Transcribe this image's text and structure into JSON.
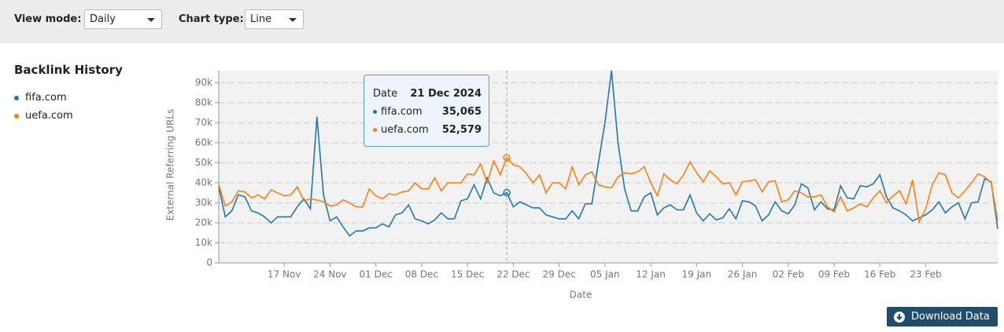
{
  "controls": {
    "view_mode_label": "View mode:",
    "view_mode": "Daily",
    "chart_type_label": "Chart type:",
    "chart_type": "Line"
  },
  "panel_title": "Backlink History",
  "download_button": "Download Data",
  "chart_data": {
    "type": "line",
    "xlabel": "Date",
    "ylabel": "External Referring URLs",
    "categories": [
      null,
      null,
      null,
      null,
      null,
      null,
      null,
      null,
      null,
      null,
      "17 Nov",
      null,
      null,
      null,
      null,
      null,
      null,
      "24 Nov",
      null,
      null,
      null,
      null,
      null,
      null,
      "01 Dec",
      null,
      null,
      null,
      null,
      null,
      null,
      "08 Dec",
      null,
      null,
      null,
      null,
      null,
      null,
      "15 Dec",
      null,
      null,
      null,
      null,
      null,
      null,
      "22 Dec",
      null,
      null,
      null,
      null,
      null,
      null,
      "29 Dec",
      null,
      null,
      null,
      null,
      null,
      null,
      "05 Jan",
      null,
      null,
      null,
      null,
      null,
      null,
      "12 Jan",
      null,
      null,
      null,
      null,
      null,
      null,
      "19 Jan",
      null,
      null,
      null,
      null,
      null,
      null,
      "26 Jan",
      null,
      null,
      null,
      null,
      null,
      null,
      "02 Feb",
      null,
      null,
      null,
      null,
      null,
      null,
      "09 Feb",
      null,
      null,
      null,
      null,
      null,
      null,
      "16 Feb",
      null,
      null,
      null,
      null,
      null,
      null,
      "23 Feb",
      null,
      null,
      null,
      null,
      null,
      null,
      null,
      null,
      null,
      null,
      null
    ],
    "ylim": [
      0,
      96000
    ],
    "yticks": [
      0,
      {
        "value": 10000,
        "label": "10k"
      },
      {
        "value": 20000,
        "label": "20k"
      },
      {
        "value": 30000,
        "label": "30k"
      },
      {
        "value": 40000,
        "label": "40k"
      },
      {
        "value": 50000,
        "label": "50k"
      },
      {
        "value": 60000,
        "label": "60k"
      },
      {
        "value": 70000,
        "label": "70k"
      },
      {
        "value": 80000,
        "label": "80k"
      },
      {
        "value": 90000,
        "label": "90k"
      }
    ],
    "grid": true,
    "tooltip": {
      "date_label": "Date",
      "date": "21 Dec 2024"
    },
    "series": [
      {
        "name": "fifa.com",
        "color": "#1f77b4",
        "values": [
          38000,
          23000,
          26000,
          34000,
          33000,
          26000,
          25000,
          23000,
          20000,
          23000,
          23000,
          23000,
          28000,
          32000,
          27000,
          73000,
          34000,
          21000,
          23000,
          18000,
          13500,
          16000,
          16000,
          17500,
          17500,
          19500,
          18000,
          24000,
          25000,
          29000,
          22000,
          21000,
          19500,
          21500,
          25000,
          22000,
          22000,
          31000,
          32000,
          39000,
          32000,
          42500,
          35000,
          33500,
          35065,
          28000,
          30500,
          29000,
          27500,
          27500,
          24000,
          23000,
          22000,
          22000,
          26000,
          22000,
          29500,
          29500,
          50000,
          70000,
          96000,
          60000,
          37000,
          26000,
          26000,
          33000,
          35000,
          24000,
          27500,
          29000,
          26500,
          26500,
          34000,
          25000,
          21000,
          24500,
          21500,
          22500,
          27000,
          22000,
          31000,
          30500,
          28500,
          21000,
          24000,
          30500,
          26000,
          24500,
          29000,
          39500,
          37500,
          26500,
          30500,
          27000,
          26500,
          38500,
          32500,
          32000,
          38500,
          38000,
          39500,
          44000,
          33000,
          27500,
          26000,
          24000,
          21000,
          22500,
          24000,
          26500,
          30500,
          25000,
          28000,
          30000,
          22000,
          30000,
          30500,
          42000,
          40500,
          17000
        ],
        "value_labels": [
          null,
          null,
          null,
          null,
          null,
          null,
          null,
          null,
          null,
          null,
          null,
          null,
          null,
          null,
          null,
          null,
          null,
          null,
          null,
          null,
          null,
          null,
          null,
          null,
          null,
          null,
          null,
          null,
          null,
          null,
          null,
          null,
          null,
          null,
          null,
          null,
          null,
          null,
          null,
          null,
          null,
          null,
          null,
          null,
          "35,065",
          null,
          null,
          null,
          null,
          null,
          null,
          null,
          null,
          null,
          null,
          null,
          null,
          null,
          null,
          null,
          null,
          null,
          null,
          null,
          null,
          null,
          null,
          null,
          null,
          null,
          null,
          null,
          null,
          null,
          null,
          null,
          null,
          null,
          null,
          null,
          null,
          null,
          null,
          null,
          null,
          null,
          null,
          null,
          null,
          null,
          null,
          null,
          null,
          null,
          null,
          null,
          null,
          null,
          null,
          null,
          null,
          null,
          null,
          null,
          null,
          null,
          null,
          null,
          null,
          null,
          null,
          null,
          null,
          null,
          null,
          null,
          null,
          null,
          null,
          null
        ]
      },
      {
        "name": "uefa.com",
        "color": "#ff7f0e",
        "values": [
          39000,
          28500,
          30500,
          36000,
          35500,
          32500,
          34000,
          32000,
          36500,
          35000,
          33500,
          34000,
          38000,
          31000,
          32000,
          31500,
          30500,
          28500,
          29000,
          31500,
          30000,
          28000,
          28000,
          37000,
          33500,
          32000,
          34500,
          34000,
          35500,
          36000,
          40000,
          37000,
          37000,
          42500,
          36000,
          40000,
          40000,
          40000,
          44500,
          44000,
          49500,
          40000,
          51000,
          44000,
          52579,
          49000,
          48000,
          44500,
          40000,
          44000,
          35000,
          40000,
          40000,
          37000,
          48000,
          39000,
          44000,
          45500,
          39000,
          38000,
          37500,
          43000,
          45000,
          44500,
          45500,
          48000,
          40000,
          33500,
          44500,
          41500,
          39500,
          44000,
          50500,
          45000,
          40500,
          46000,
          43000,
          39500,
          40000,
          34000,
          40500,
          41000,
          41500,
          35500,
          40500,
          41000,
          30500,
          31500,
          36000,
          35000,
          33000,
          33000,
          34000,
          28000,
          25500,
          33000,
          26000,
          27500,
          29500,
          28000,
          32500,
          36000,
          30000,
          33500,
          36000,
          29500,
          41500,
          20500,
          27000,
          39000,
          45000,
          44000,
          35000,
          32500,
          36000,
          40000,
          44500,
          43000,
          40000,
          21000
        ],
        "value_labels": [
          null,
          null,
          null,
          null,
          null,
          null,
          null,
          null,
          null,
          null,
          null,
          null,
          null,
          null,
          null,
          null,
          null,
          null,
          null,
          null,
          null,
          null,
          null,
          null,
          null,
          null,
          null,
          null,
          null,
          null,
          null,
          null,
          null,
          null,
          null,
          null,
          null,
          null,
          null,
          null,
          null,
          null,
          null,
          null,
          "52,579",
          null,
          null,
          null,
          null,
          null,
          null,
          null,
          null,
          null,
          null,
          null,
          null,
          null,
          null,
          null,
          null,
          null,
          null,
          null,
          null,
          null,
          null,
          null,
          null,
          null,
          null,
          null,
          null,
          null,
          null,
          null,
          null,
          null,
          null,
          null,
          null,
          null,
          null,
          null,
          null,
          null,
          null,
          null,
          null,
          null,
          null,
          null,
          null,
          null,
          null,
          null,
          null,
          null,
          null,
          null,
          null,
          null,
          null,
          null,
          null,
          null,
          null,
          null,
          null,
          null,
          null,
          null,
          null,
          null,
          null,
          null,
          null,
          null,
          null,
          null
        ]
      }
    ]
  }
}
